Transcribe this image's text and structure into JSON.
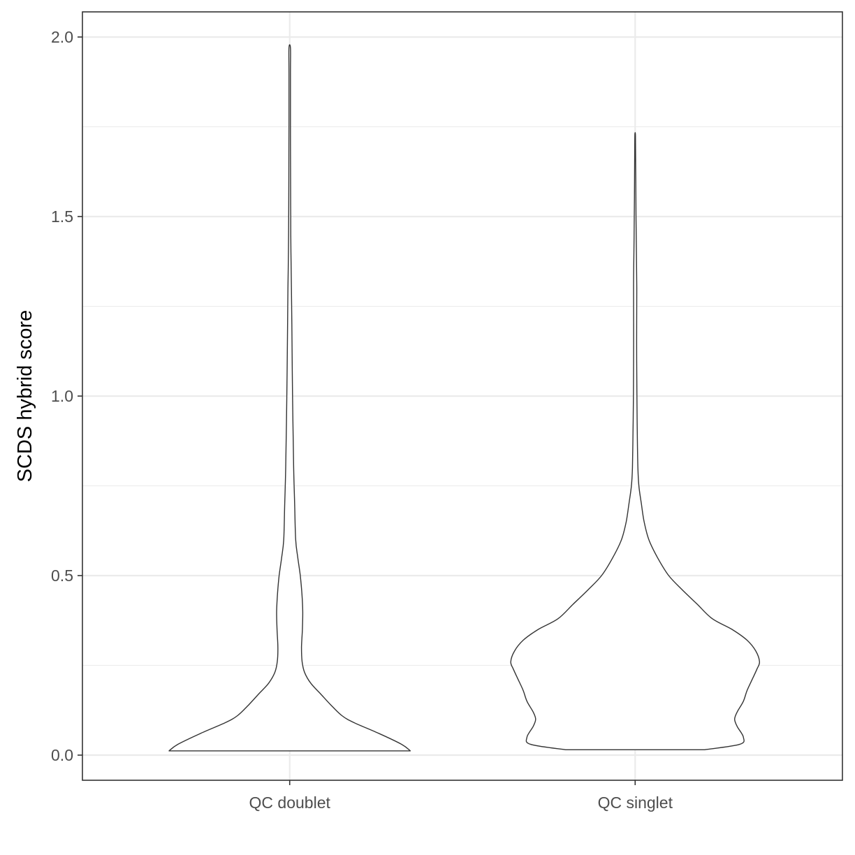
{
  "chart_data": {
    "type": "violin",
    "title": "",
    "xlabel": "",
    "ylabel": "SCDS hybrid score",
    "ylim": [
      -0.07,
      2.07
    ],
    "y_ticks": [
      0.0,
      0.5,
      1.0,
      1.5,
      2.0
    ],
    "y_tick_labels": [
      "0.0",
      "0.5",
      "1.0",
      "1.5",
      "2.0"
    ],
    "grid": true,
    "theme": "bw",
    "categories": [
      "QC doublet",
      "QC singlet"
    ],
    "max_half_width": 0.36,
    "series": [
      {
        "category": "QC doublet",
        "range": [
          0.012,
          1.97
        ],
        "density_profile": [
          [
            0.012,
            0.97
          ],
          [
            0.03,
            0.9
          ],
          [
            0.06,
            0.72
          ],
          [
            0.09,
            0.52
          ],
          [
            0.11,
            0.42
          ],
          [
            0.14,
            0.33
          ],
          [
            0.17,
            0.25
          ],
          [
            0.2,
            0.17
          ],
          [
            0.23,
            0.12
          ],
          [
            0.26,
            0.1
          ],
          [
            0.3,
            0.095
          ],
          [
            0.35,
            0.102
          ],
          [
            0.4,
            0.105
          ],
          [
            0.45,
            0.098
          ],
          [
            0.5,
            0.085
          ],
          [
            0.55,
            0.065
          ],
          [
            0.6,
            0.048
          ],
          [
            0.7,
            0.04
          ],
          [
            0.8,
            0.032
          ],
          [
            1.0,
            0.023
          ],
          [
            1.2,
            0.017
          ],
          [
            1.3,
            0.014
          ],
          [
            1.4,
            0.01
          ],
          [
            1.5,
            0.008
          ],
          [
            1.6,
            0.007
          ],
          [
            1.75,
            0.006
          ],
          [
            1.9,
            0.006
          ],
          [
            1.97,
            0.006
          ]
        ]
      },
      {
        "category": "QC singlet",
        "range": [
          0.015,
          1.73
        ],
        "density_profile": [
          [
            0.015,
            0.56
          ],
          [
            0.03,
            0.84
          ],
          [
            0.05,
            0.87
          ],
          [
            0.08,
            0.82
          ],
          [
            0.1,
            0.8
          ],
          [
            0.12,
            0.82
          ],
          [
            0.15,
            0.87
          ],
          [
            0.18,
            0.9
          ],
          [
            0.21,
            0.94
          ],
          [
            0.24,
            0.98
          ],
          [
            0.26,
            1.0
          ],
          [
            0.29,
            0.97
          ],
          [
            0.32,
            0.9
          ],
          [
            0.35,
            0.78
          ],
          [
            0.38,
            0.62
          ],
          [
            0.42,
            0.5
          ],
          [
            0.46,
            0.38
          ],
          [
            0.5,
            0.27
          ],
          [
            0.55,
            0.18
          ],
          [
            0.6,
            0.11
          ],
          [
            0.65,
            0.072
          ],
          [
            0.7,
            0.05
          ],
          [
            0.75,
            0.03
          ],
          [
            0.8,
            0.022
          ],
          [
            0.9,
            0.017
          ],
          [
            1.0,
            0.014
          ],
          [
            1.15,
            0.012
          ],
          [
            1.3,
            0.013
          ],
          [
            1.4,
            0.01
          ],
          [
            1.5,
            0.007
          ],
          [
            1.6,
            0.005
          ],
          [
            1.7,
            0.003
          ],
          [
            1.73,
            0.002
          ]
        ]
      }
    ]
  }
}
